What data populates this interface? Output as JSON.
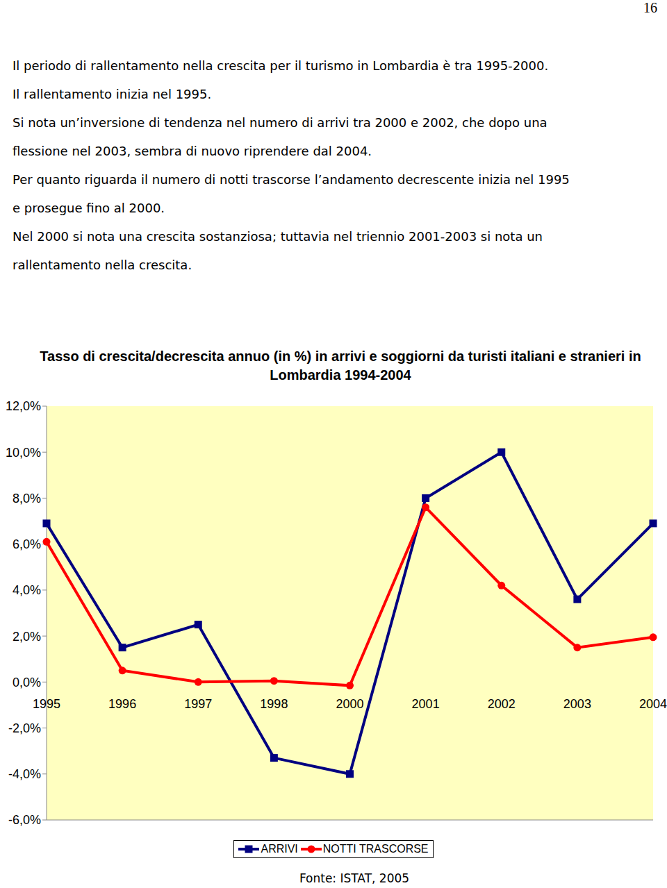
{
  "page_number": "16",
  "lines": [
    "Il periodo di rallentamento nella crescita per il turismo in Lombardia è tra 1995-2000.",
    "Il rallentamento inizia nel 1995.",
    "Si nota un’inversione di tendenza nel numero di arrivi tra 2000 e 2002, che dopo una",
    "flessione nel 2003, sembra di nuovo riprendere dal 2004.",
    "Per quanto riguarda il numero di notti trascorse l’andamento decrescente inizia nel 1995",
    "e prosegue fino al 2000.",
    "Nel 2000 si nota una crescita sostanziosa; tuttavia nel triennio 2001-2003 si nota un",
    "rallentamento nella crescita."
  ],
  "chart_data": {
    "type": "line",
    "title": "Tasso di crescita/decrescita annuo (in %) in arrivi e soggiorni da turisti italiani e stranieri in Lombardia 1994-2004",
    "categories": [
      "1995",
      "1996",
      "1997",
      "1998",
      "2000",
      "2001",
      "2002",
      "2003",
      "2004"
    ],
    "series": [
      {
        "name": "ARRIVI",
        "color": "#000080",
        "marker": "square",
        "values": [
          6.9,
          1.5,
          2.5,
          -3.3,
          -4.0,
          8.0,
          10.0,
          3.6,
          6.9
        ]
      },
      {
        "name": "NOTTI TRASCORSE",
        "color": "#ff0000",
        "marker": "circle",
        "values": [
          6.1,
          0.5,
          0.0,
          0.05,
          -0.15,
          7.6,
          4.2,
          1.5,
          1.95
        ]
      }
    ],
    "ylim": [
      -6,
      12
    ],
    "yticks": [
      {
        "value": -6,
        "label": "-6,0%"
      },
      {
        "value": -4,
        "label": "-4,0%"
      },
      {
        "value": -2,
        "label": "-2,0%"
      },
      {
        "value": 0,
        "label": "0,0%"
      },
      {
        "value": 2,
        "label": "2,0%"
      },
      {
        "value": 4,
        "label": "4,0%"
      },
      {
        "value": 6,
        "label": "6,0%"
      },
      {
        "value": 8,
        "label": "8,0%"
      },
      {
        "value": 10,
        "label": "10,0%"
      },
      {
        "value": 12,
        "label": "12,0%"
      }
    ],
    "grid": false,
    "legend": "bottom",
    "source": "Fonte: ISTAT, 2005"
  }
}
